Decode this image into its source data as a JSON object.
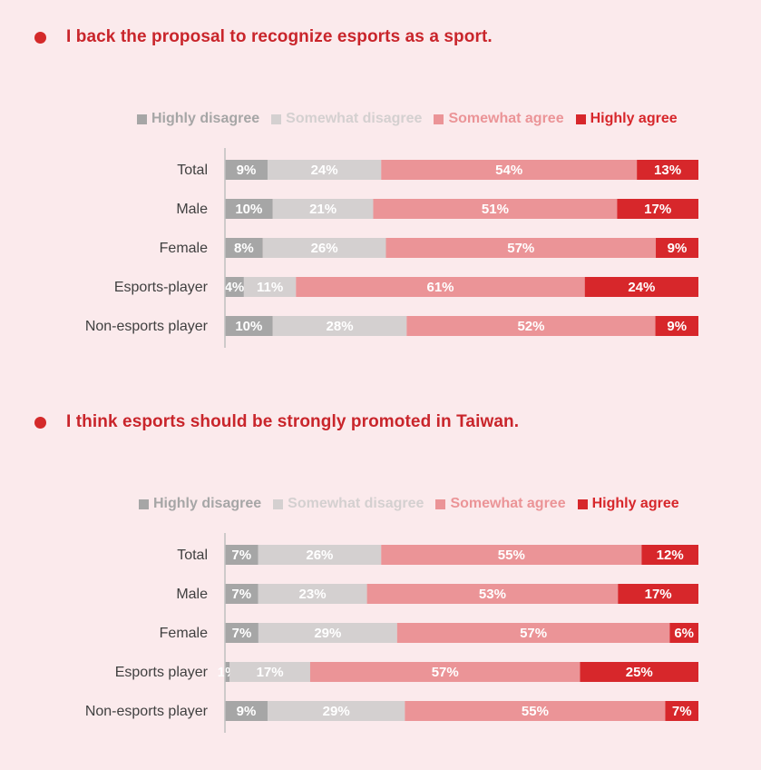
{
  "colors": {
    "highly_disagree": "#a6a6a6",
    "somewhat_disagree": "#d4d0d0",
    "somewhat_agree": "#eb9497",
    "highly_agree": "#d7272b",
    "title": "#c9252b",
    "axis": "#bfbfbf"
  },
  "chart_data": [
    {
      "type": "bar",
      "orientation": "horizontal-stacked-100",
      "title": "I back the proposal to recognize esports as a sport.",
      "legend_position": "top",
      "categories": [
        "Total",
        "Male",
        "Female",
        "Esports-player",
        "Non-esports player"
      ],
      "series": [
        {
          "name": "Highly disagree",
          "values": [
            9,
            10,
            8,
            4,
            10
          ],
          "labels": [
            "9%",
            "10%",
            "8%",
            "4%",
            "10%"
          ]
        },
        {
          "name": "Somewhat disagree",
          "values": [
            24,
            21,
            26,
            11,
            28
          ],
          "labels": [
            "24%",
            "21%",
            "26%",
            "11%",
            "28%"
          ]
        },
        {
          "name": "Somewhat agree",
          "values": [
            54,
            51,
            57,
            61,
            52
          ],
          "labels": [
            "54%",
            "51%",
            "57%",
            "61%",
            "52%"
          ]
        },
        {
          "name": "Highly agree",
          "values": [
            13,
            17,
            9,
            24,
            9
          ],
          "labels": [
            "13%",
            "17%",
            "9%",
            "24%",
            "9%"
          ]
        }
      ]
    },
    {
      "type": "bar",
      "orientation": "horizontal-stacked-100",
      "title": "I think esports should be strongly promoted in Taiwan.",
      "legend_position": "top",
      "categories": [
        "Total",
        "Male",
        "Female",
        "Esports player",
        "Non-esports player"
      ],
      "series": [
        {
          "name": "Highly disagree",
          "values": [
            7,
            7,
            7,
            1,
            9
          ],
          "labels": [
            "7%",
            "7%",
            "7%",
            "1%",
            "9%"
          ]
        },
        {
          "name": "Somewhat disagree",
          "values": [
            26,
            23,
            29,
            17,
            29
          ],
          "labels": [
            "26%",
            "23%",
            "29%",
            "17%",
            "29%"
          ]
        },
        {
          "name": "Somewhat agree",
          "values": [
            55,
            53,
            57,
            57,
            55
          ],
          "labels": [
            "55%",
            "53%",
            "57%",
            "57%",
            "55%"
          ]
        },
        {
          "name": "Highly agree",
          "values": [
            12,
            17,
            6,
            25,
            7
          ],
          "labels": [
            "12%",
            "17%",
            "6%",
            "25%",
            "7%"
          ]
        }
      ]
    }
  ]
}
